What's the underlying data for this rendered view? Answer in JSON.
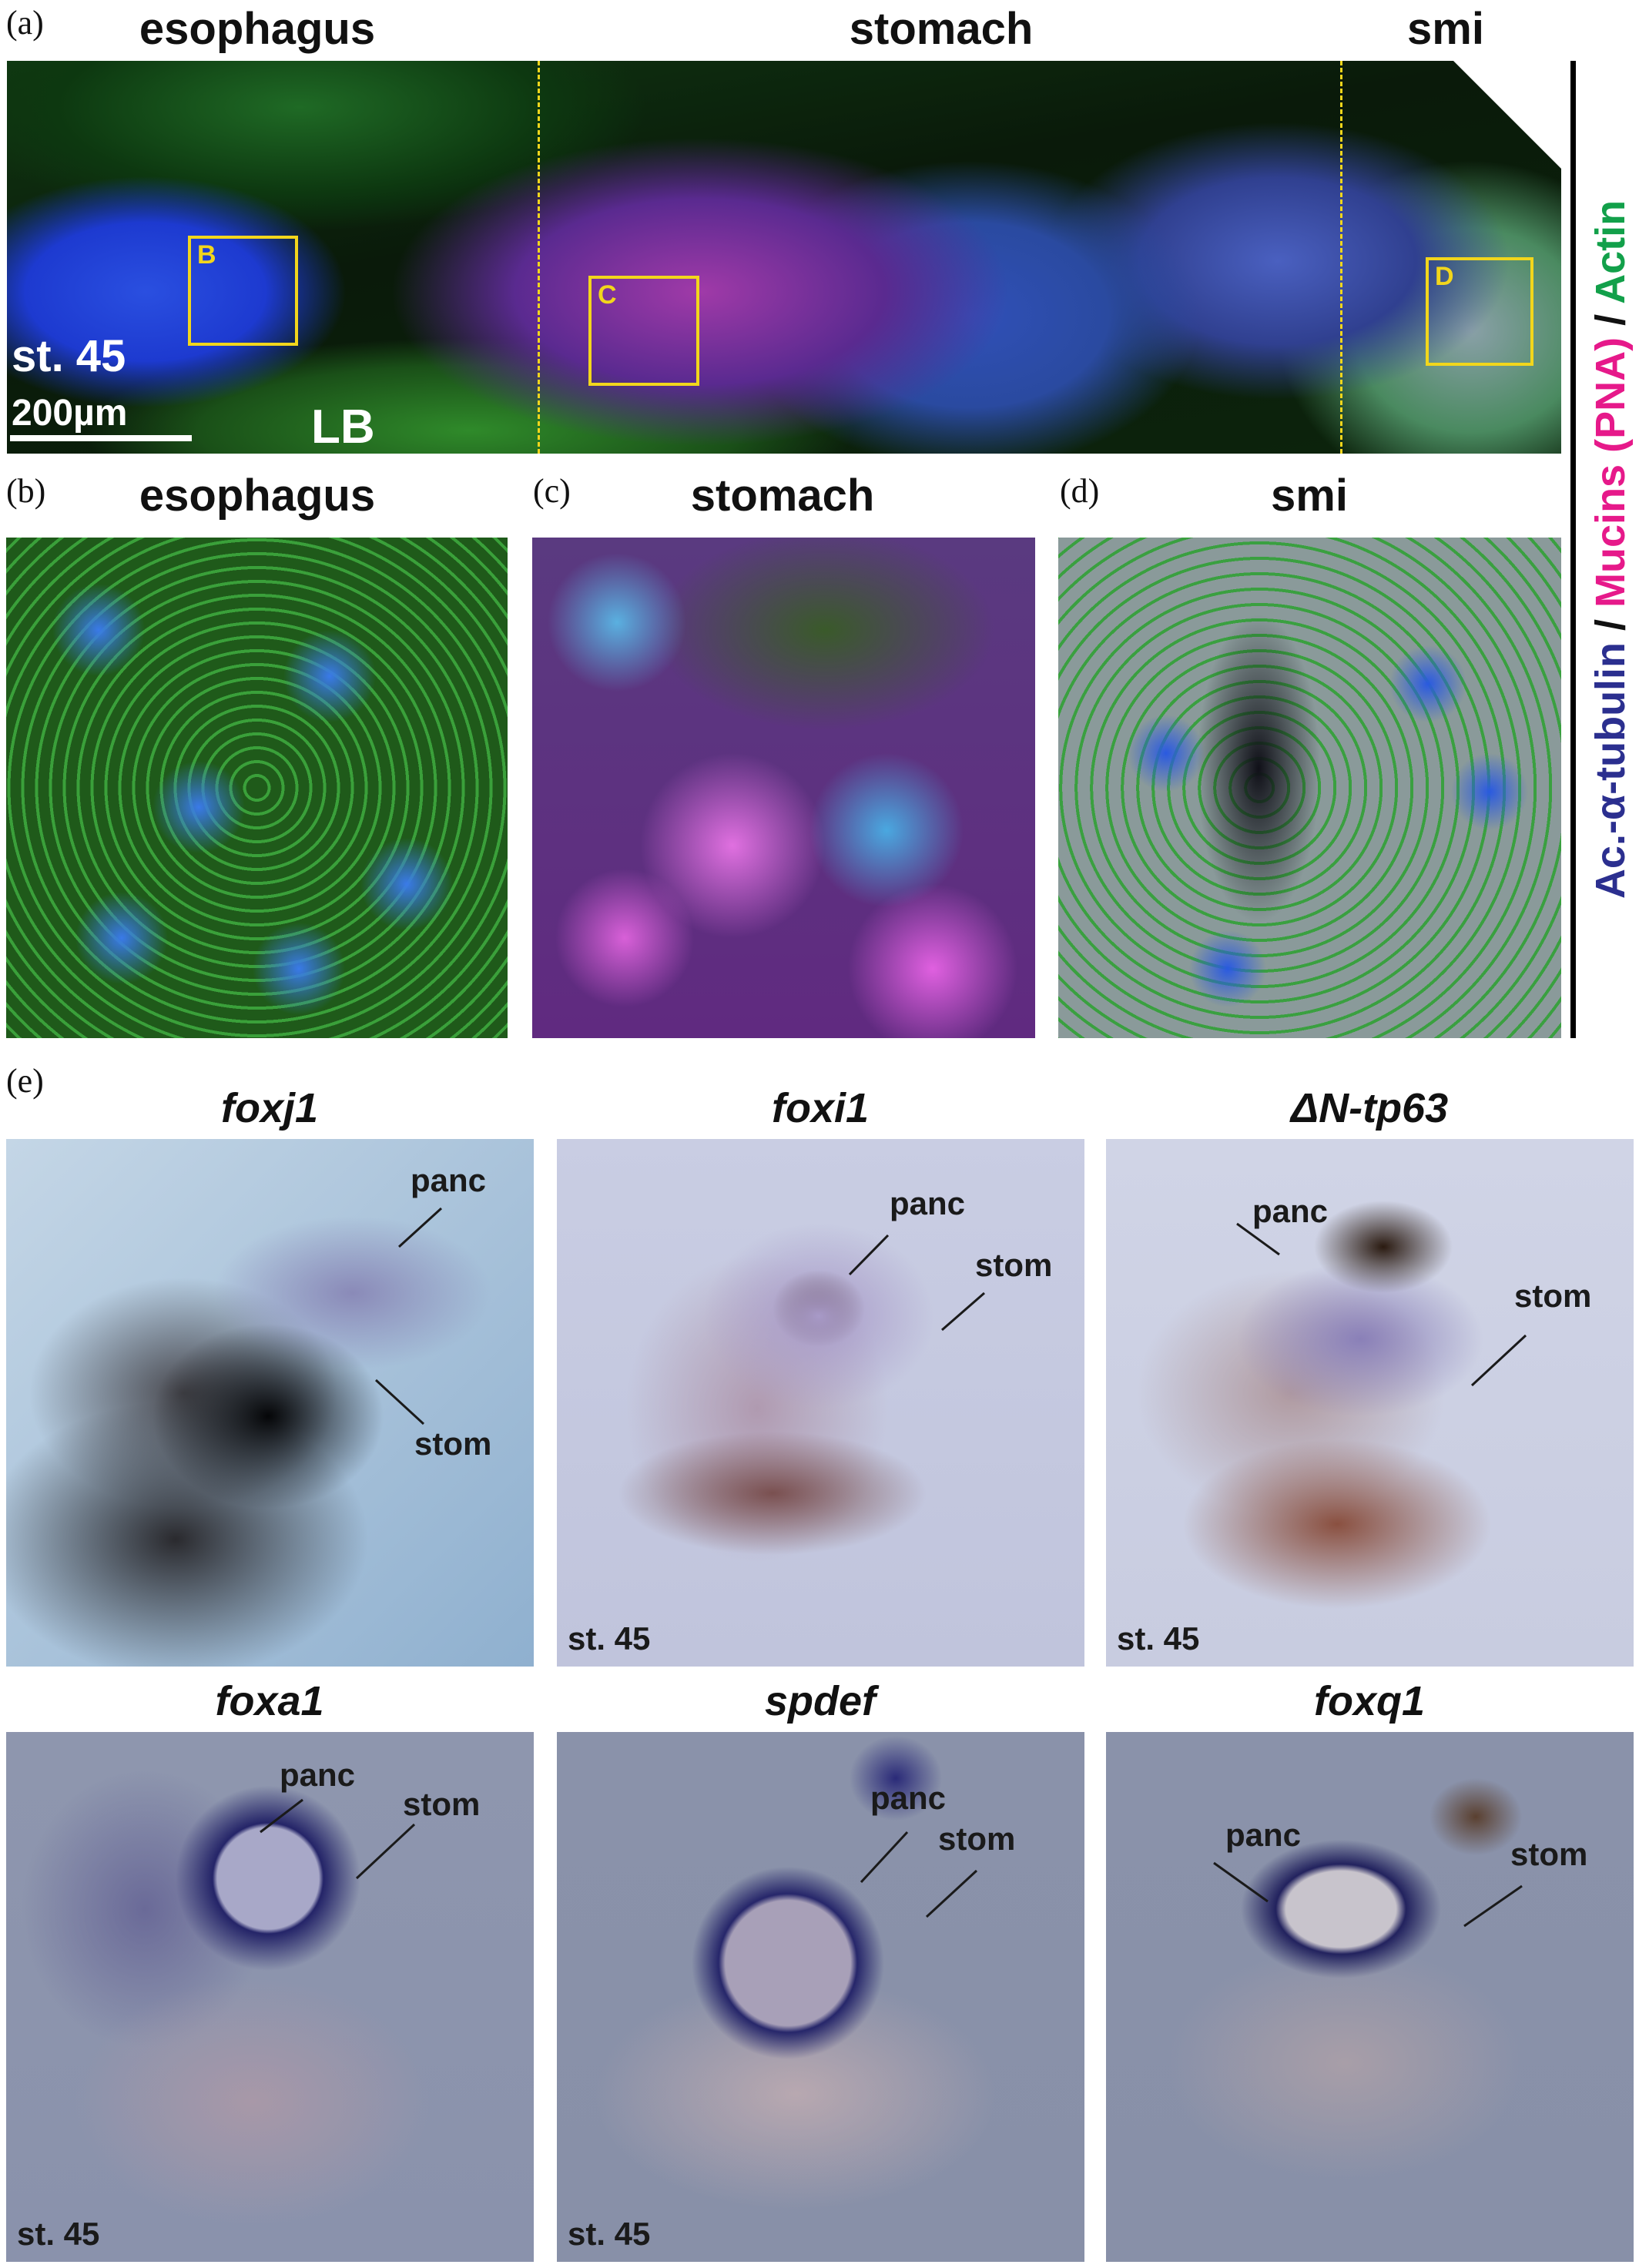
{
  "panel_a": {
    "label": "(a)",
    "titles": {
      "esophagus": "esophagus",
      "stomach": "stomach",
      "smi": "smi"
    },
    "boxes": {
      "b": "B",
      "c": "C",
      "d": "D"
    },
    "stage": "st. 45",
    "scale": "200µm",
    "lb": "LB"
  },
  "panel_b": {
    "label": "(b)",
    "title": "esophagus"
  },
  "panel_c": {
    "label": "(c)",
    "title": "stomach"
  },
  "panel_d": {
    "label": "(d)",
    "title": "smi"
  },
  "legend": {
    "tubulin": "Ac.-α-tubulin",
    "sep1": " / ",
    "mucins": "Mucins (PNA)",
    "sep2": " / ",
    "actin": "Actin",
    "colors": {
      "tubulin": "#2b2f8f",
      "mucins": "#e6198a",
      "actin": "#12a04a"
    }
  },
  "panel_e": {
    "label": "(e)",
    "images": [
      {
        "gene": "foxj1",
        "annotations": [
          "panc",
          "stom"
        ],
        "stage": ""
      },
      {
        "gene": "foxi1",
        "annotations": [
          "panc",
          "stom"
        ],
        "stage": "st. 45"
      },
      {
        "gene": "ΔN-tp63",
        "annotations": [
          "panc",
          "stom"
        ],
        "stage": "st. 45"
      },
      {
        "gene": "foxa1",
        "annotations": [
          "panc",
          "stom"
        ],
        "stage": "st. 45"
      },
      {
        "gene": "spdef",
        "annotations": [
          "panc",
          "stom"
        ],
        "stage": "st. 45"
      },
      {
        "gene": "foxq1",
        "annotations": [
          "panc",
          "stom"
        ],
        "stage": ""
      }
    ]
  }
}
